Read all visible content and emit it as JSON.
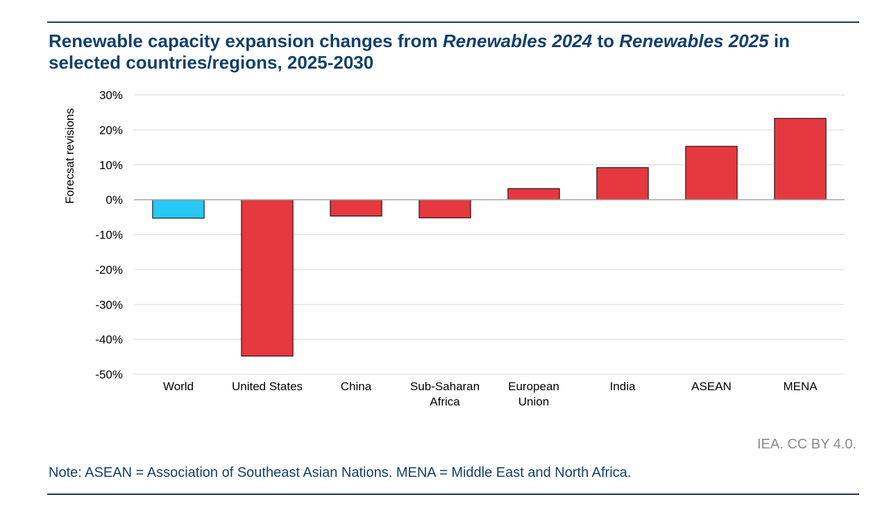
{
  "title": {
    "part1": "Renewable capacity expansion changes from ",
    "italic1": "Renewables 2024",
    "part2": " to ",
    "italic2": "Renewables 2025",
    "part3": " in selected countries/regions, 2025-2030"
  },
  "credit": "IEA. CC BY 4.0.",
  "note": "Note: ASEAN = Association of Southeast Asian Nations. MENA = Middle East and North Africa.",
  "colors": {
    "highlight_bar": "#29c7f4",
    "bar": "#e5383f",
    "title": "#12406b",
    "grid": "#d9d9d9"
  },
  "chart_data": {
    "type": "bar",
    "categories": [
      "World",
      "United States",
      "China",
      "Sub-Saharan Africa",
      "European Union",
      "India",
      "ASEAN",
      "MENA"
    ],
    "category_label_lines": [
      [
        "World"
      ],
      [
        "United States"
      ],
      [
        "China"
      ],
      [
        "Sub-Saharan",
        "Africa"
      ],
      [
        "European",
        "Union"
      ],
      [
        "India"
      ],
      [
        "ASEAN"
      ],
      [
        "MENA"
      ]
    ],
    "values": [
      -5.3,
      -44.8,
      -4.7,
      -5.2,
      3.2,
      9.2,
      15.3,
      23.3
    ],
    "bar_colors": [
      "#29c7f4",
      "#e5383f",
      "#e5383f",
      "#e5383f",
      "#e5383f",
      "#e5383f",
      "#e5383f",
      "#e5383f"
    ],
    "unit": "%",
    "ylabel": "Forecsat revisions",
    "xlabel": "",
    "ylim": [
      -50,
      30
    ],
    "yticks": [
      30,
      20,
      10,
      0,
      -10,
      -20,
      -30,
      -40,
      -50
    ],
    "ytick_labels": [
      "30%",
      "20%",
      "10%",
      "0%",
      "-10%",
      "-20%",
      "-30%",
      "-40%",
      "-50%"
    ],
    "grid": true,
    "legend": "none"
  }
}
